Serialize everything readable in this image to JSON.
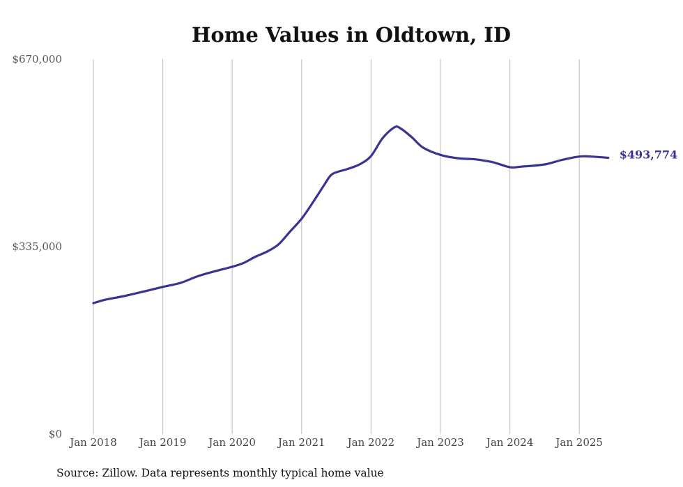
{
  "chart_data": {
    "type": "line",
    "title": "Home Values in Oldtown, ID",
    "xlabel": "",
    "ylabel": "",
    "x_tick_labels": [
      "Jan 2018",
      "Jan 2019",
      "Jan 2020",
      "Jan 2021",
      "Jan 2022",
      "Jan 2023",
      "Jan 2024",
      "Jan 2025"
    ],
    "y_tick_labels": [
      "$0",
      "$335,000",
      "$670,000"
    ],
    "y_ticks": [
      0,
      335000,
      670000
    ],
    "ylim": [
      0,
      670000
    ],
    "grid": "vertical",
    "series": [
      {
        "color": "#383490",
        "points": [
          {
            "x": "2018-01",
            "y": 234000
          },
          {
            "x": "2018-03",
            "y": 240000
          },
          {
            "x": "2018-06",
            "y": 246000
          },
          {
            "x": "2018-09",
            "y": 253000
          },
          {
            "x": "2019-01",
            "y": 263000
          },
          {
            "x": "2019-04",
            "y": 270000
          },
          {
            "x": "2019-07",
            "y": 282000
          },
          {
            "x": "2019-10",
            "y": 291000
          },
          {
            "x": "2020-01",
            "y": 299000
          },
          {
            "x": "2020-03",
            "y": 306000
          },
          {
            "x": "2020-05",
            "y": 317000
          },
          {
            "x": "2020-07",
            "y": 326000
          },
          {
            "x": "2020-09",
            "y": 339000
          },
          {
            "x": "2020-11",
            "y": 362000
          },
          {
            "x": "2021-01",
            "y": 385000
          },
          {
            "x": "2021-03",
            "y": 415000
          },
          {
            "x": "2021-05",
            "y": 447000
          },
          {
            "x": "2021-06",
            "y": 462000
          },
          {
            "x": "2021-07",
            "y": 468000
          },
          {
            "x": "2021-09",
            "y": 474000
          },
          {
            "x": "2021-11",
            "y": 482000
          },
          {
            "x": "2022-01",
            "y": 497000
          },
          {
            "x": "2022-03",
            "y": 529000
          },
          {
            "x": "2022-05",
            "y": 548000
          },
          {
            "x": "2022-06",
            "y": 547000
          },
          {
            "x": "2022-08",
            "y": 531000
          },
          {
            "x": "2022-10",
            "y": 512000
          },
          {
            "x": "2023-01",
            "y": 499000
          },
          {
            "x": "2023-04",
            "y": 493000
          },
          {
            "x": "2023-07",
            "y": 491000
          },
          {
            "x": "2023-10",
            "y": 486000
          },
          {
            "x": "2024-01",
            "y": 477000
          },
          {
            "x": "2024-03",
            "y": 478000
          },
          {
            "x": "2024-07",
            "y": 482000
          },
          {
            "x": "2024-10",
            "y": 490000
          },
          {
            "x": "2025-01",
            "y": 496000
          },
          {
            "x": "2025-03",
            "y": 496000
          },
          {
            "x": "2025-06",
            "y": 493774
          }
        ],
        "end_label": "$493,774"
      }
    ],
    "source_note": "Source: Zillow. Data represents monthly typical home value"
  }
}
